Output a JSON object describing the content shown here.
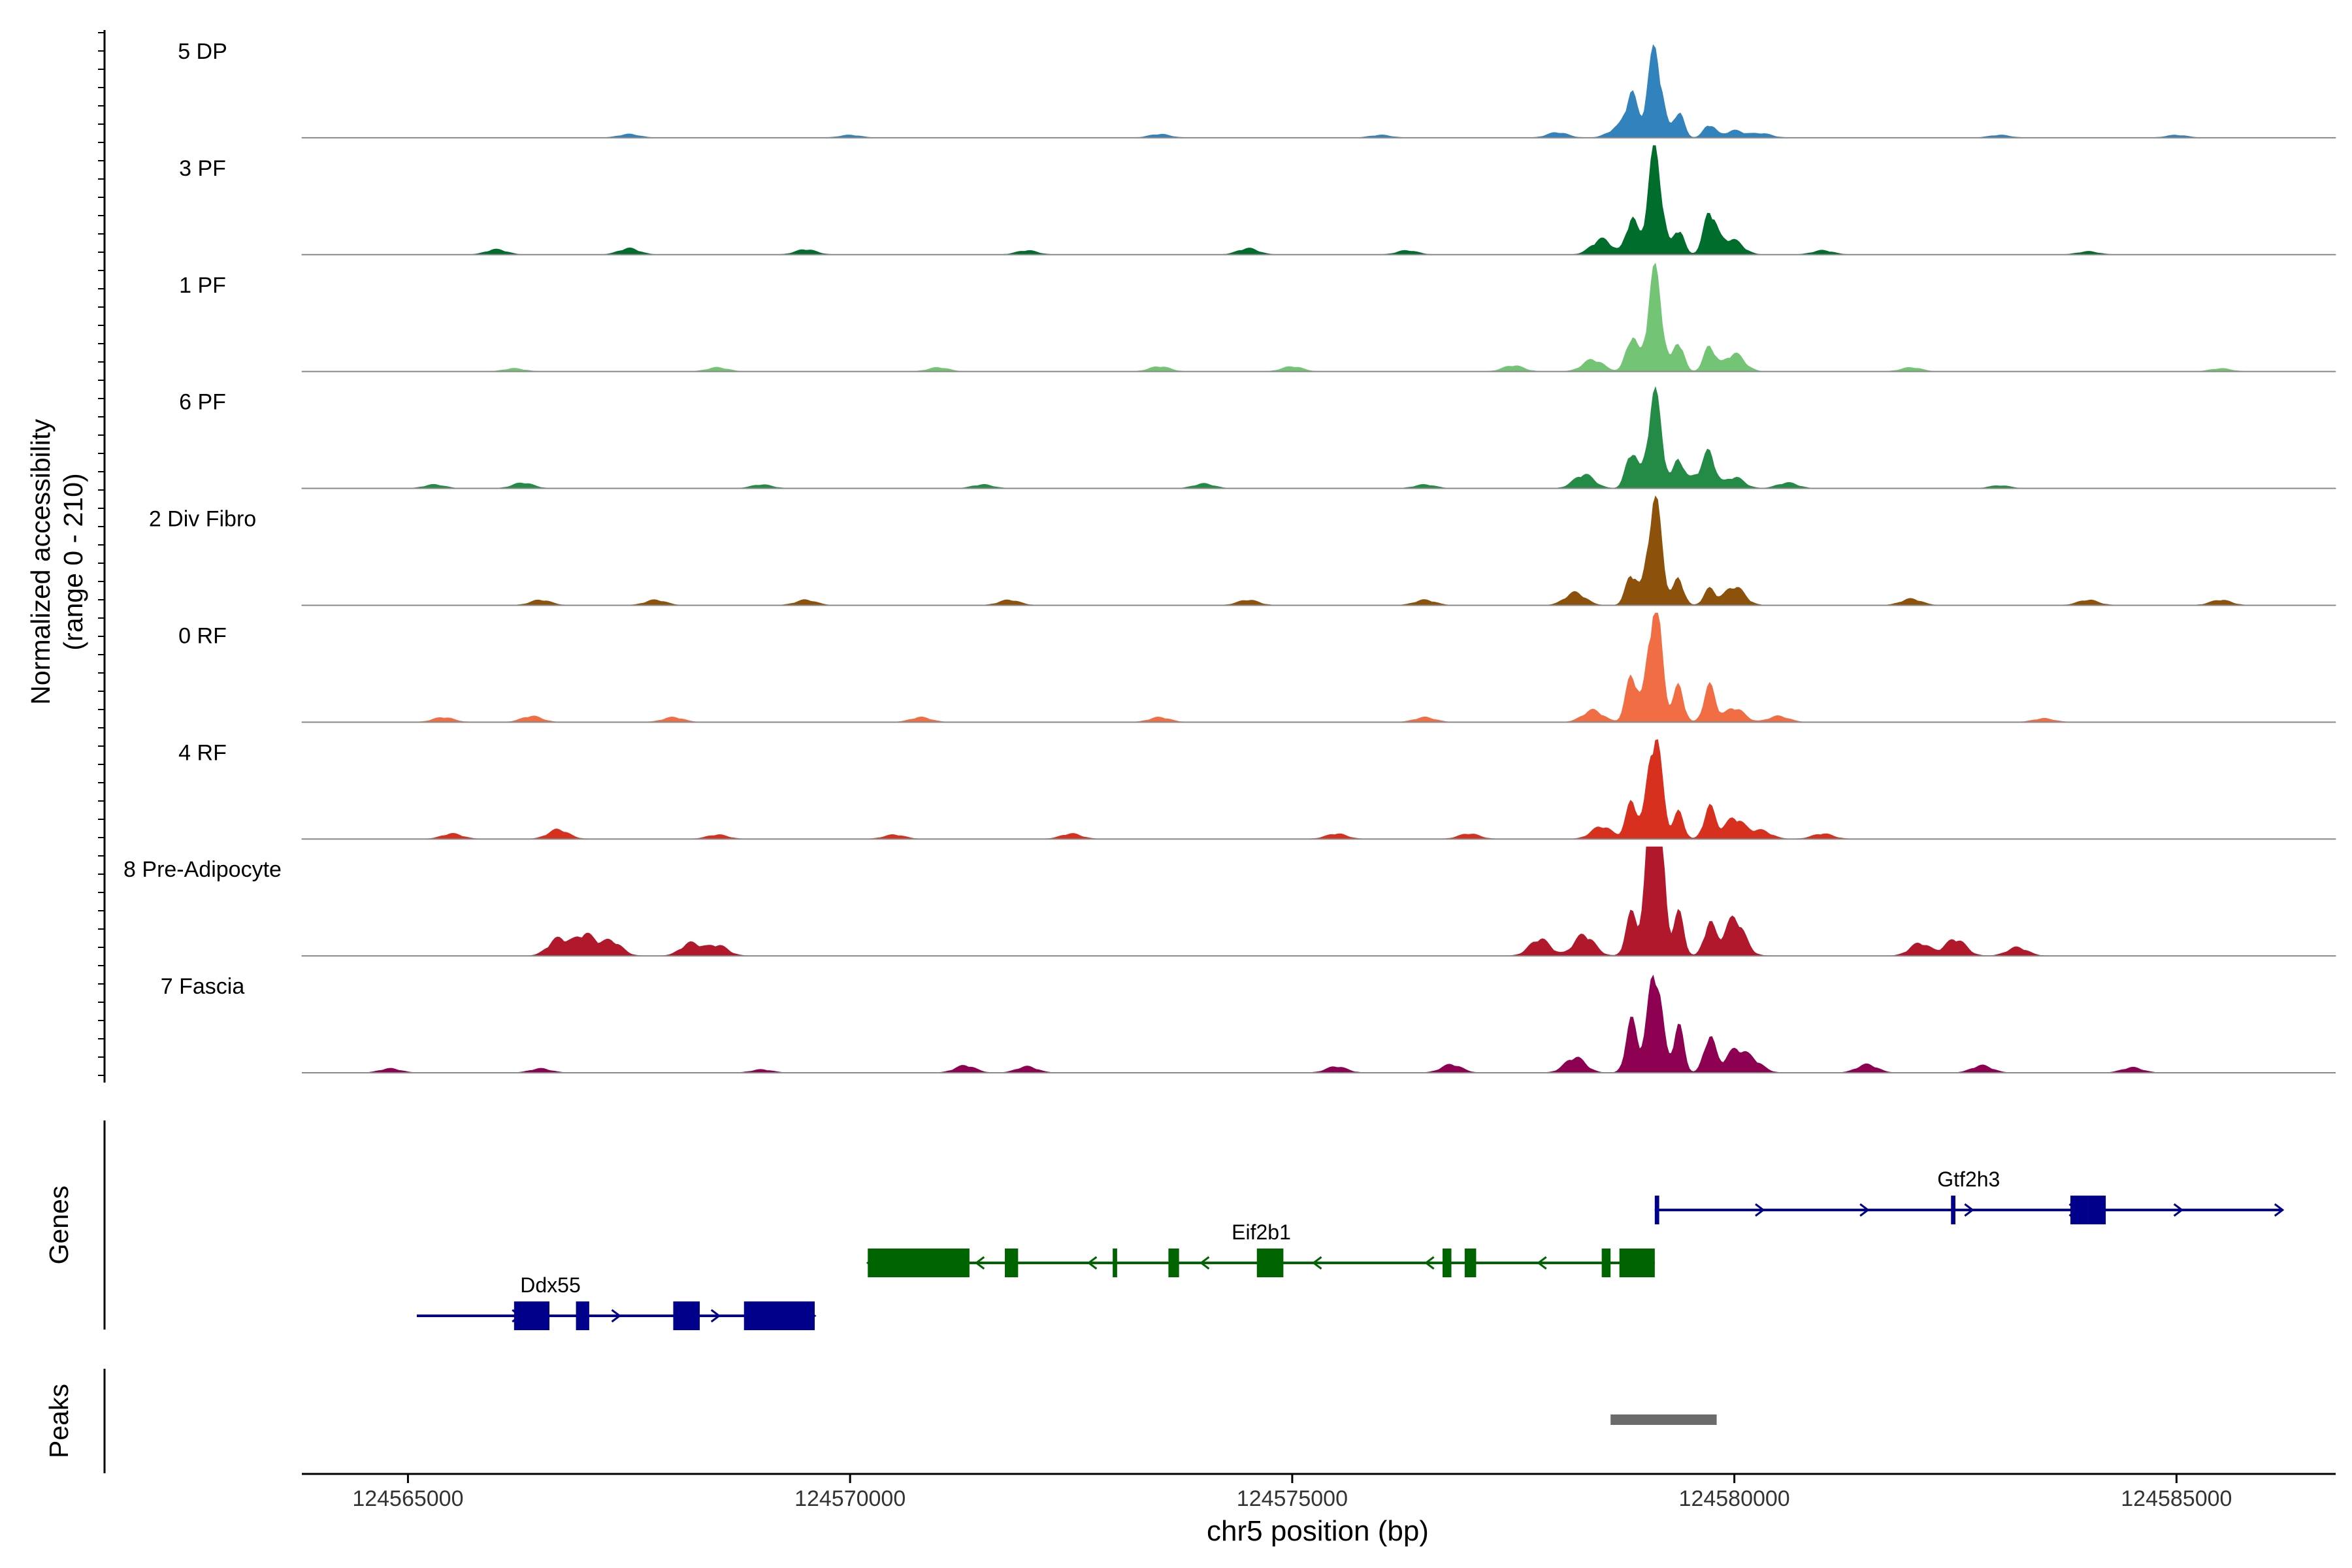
{
  "chart_data": {
    "type": "coverage-track",
    "ylabel_line1": "Normalized accessibility",
    "ylabel_line2": "(range 0 - 210)",
    "y_range": [
      0,
      210
    ],
    "xlabel": "chr5 position (bp)",
    "x_range": [
      124563800,
      124586800
    ],
    "x_ticks": [
      "124565000",
      "124570000",
      "124575000",
      "124580000",
      "124585000"
    ],
    "peak_pos": 124579100,
    "tracks": [
      {
        "name": "5 DP",
        "color": "#3182bd",
        "peak": 85,
        "sec": [
          0.45,
          0.3,
          0.15,
          0.08
        ],
        "bumps": [
          [
            124567500,
            0.04
          ],
          [
            124570000,
            0.03
          ],
          [
            124573500,
            0.04
          ],
          [
            124576000,
            0.03
          ],
          [
            124578000,
            0.06
          ],
          [
            124578700,
            0.12
          ],
          [
            124580300,
            0.05
          ],
          [
            124583000,
            0.03
          ],
          [
            124585000,
            0.03
          ]
        ]
      },
      {
        "name": "3 PF",
        "color": "#006d2c",
        "peak": 100,
        "sec": [
          0.35,
          0.25,
          0.35,
          0.12
        ],
        "bumps": [
          [
            124566000,
            0.05
          ],
          [
            124567500,
            0.06
          ],
          [
            124569500,
            0.05
          ],
          [
            124572000,
            0.04
          ],
          [
            124574500,
            0.06
          ],
          [
            124576300,
            0.04
          ],
          [
            124578500,
            0.15
          ],
          [
            124579800,
            0.1
          ],
          [
            124581000,
            0.04
          ],
          [
            124584000,
            0.03
          ]
        ]
      },
      {
        "name": "1 PF",
        "color": "#74c476",
        "peak": 96,
        "sec": [
          0.35,
          0.3,
          0.25,
          0.1
        ],
        "bumps": [
          [
            124566200,
            0.03
          ],
          [
            124568500,
            0.04
          ],
          [
            124571000,
            0.04
          ],
          [
            124573500,
            0.05
          ],
          [
            124575000,
            0.05
          ],
          [
            124577500,
            0.06
          ],
          [
            124578400,
            0.12
          ],
          [
            124580000,
            0.08
          ],
          [
            124582000,
            0.04
          ],
          [
            124585500,
            0.03
          ]
        ]
      },
      {
        "name": "6 PF",
        "color": "#238b45",
        "peak": 90,
        "sec": [
          0.4,
          0.3,
          0.3,
          0.12
        ],
        "bumps": [
          [
            124565300,
            0.04
          ],
          [
            124566300,
            0.06
          ],
          [
            124569000,
            0.04
          ],
          [
            124571500,
            0.04
          ],
          [
            124574000,
            0.05
          ],
          [
            124576500,
            0.04
          ],
          [
            124578300,
            0.15
          ],
          [
            124579600,
            0.15
          ],
          [
            124580600,
            0.06
          ],
          [
            124583000,
            0.03
          ]
        ]
      },
      {
        "name": "2 Div Fibro",
        "color": "#8c510a",
        "peak": 102,
        "sec": [
          0.3,
          0.25,
          0.15,
          0.1
        ],
        "bumps": [
          [
            124566500,
            0.05
          ],
          [
            124567800,
            0.05
          ],
          [
            124569500,
            0.05
          ],
          [
            124571800,
            0.05
          ],
          [
            124574500,
            0.05
          ],
          [
            124576500,
            0.05
          ],
          [
            124578200,
            0.12
          ],
          [
            124580000,
            0.08
          ],
          [
            124582000,
            0.06
          ],
          [
            124584000,
            0.05
          ],
          [
            124585500,
            0.05
          ]
        ]
      },
      {
        "name": "0 RF",
        "color": "#f16d43",
        "peak": 115,
        "sec": [
          0.4,
          0.3,
          0.3,
          0.12
        ],
        "bumps": [
          [
            124565400,
            0.04
          ],
          [
            124566400,
            0.05
          ],
          [
            124568000,
            0.04
          ],
          [
            124570800,
            0.04
          ],
          [
            124573500,
            0.04
          ],
          [
            124576500,
            0.04
          ],
          [
            124578400,
            0.1
          ],
          [
            124580500,
            0.05
          ],
          [
            124583500,
            0.03
          ]
        ]
      },
      {
        "name": "4 RF",
        "color": "#d7301f",
        "peak": 102,
        "sec": [
          0.35,
          0.25,
          0.3,
          0.2
        ],
        "bumps": [
          [
            124565500,
            0.05
          ],
          [
            124566700,
            0.09
          ],
          [
            124568500,
            0.04
          ],
          [
            124570500,
            0.04
          ],
          [
            124572500,
            0.05
          ],
          [
            124575500,
            0.05
          ],
          [
            124577000,
            0.05
          ],
          [
            124578500,
            0.12
          ],
          [
            124580300,
            0.08
          ],
          [
            124581000,
            0.05
          ]
        ]
      },
      {
        "name": "8 Pre-Adipocyte",
        "color": "#b2182b",
        "peak": 205,
        "sec": [
          0.2,
          0.2,
          0.15,
          0.1
        ],
        "bumps": [
          [
            124566700,
            0.08
          ],
          [
            124567000,
            0.1
          ],
          [
            124567300,
            0.07
          ],
          [
            124568200,
            0.06
          ],
          [
            124568500,
            0.05
          ],
          [
            124577800,
            0.08
          ],
          [
            124578300,
            0.1
          ],
          [
            124580000,
            0.08
          ],
          [
            124582100,
            0.06
          ],
          [
            124582500,
            0.08
          ],
          [
            124583200,
            0.04
          ]
        ]
      },
      {
        "name": "7 Fascia",
        "color": "#8e0152",
        "peak": 100,
        "sec": [
          0.5,
          0.45,
          0.35,
          0.2
        ],
        "bumps": [
          [
            124564800,
            0.04
          ],
          [
            124566500,
            0.04
          ],
          [
            124569000,
            0.03
          ],
          [
            124571300,
            0.07
          ],
          [
            124572000,
            0.06
          ],
          [
            124575500,
            0.06
          ],
          [
            124576800,
            0.08
          ],
          [
            124578200,
            0.15
          ],
          [
            124580200,
            0.12
          ],
          [
            124581500,
            0.08
          ],
          [
            124582800,
            0.07
          ],
          [
            124584500,
            0.05
          ]
        ]
      }
    ],
    "genes_label": "Genes",
    "peaks_label": "Peaks",
    "genes": [
      {
        "name": "Ddx55",
        "strand": "+",
        "color": "#00008b",
        "start": 124565100,
        "end": 124569600,
        "row": 2,
        "exons": [
          [
            124566200,
            124566600
          ],
          [
            124566900,
            124567050
          ],
          [
            124568000,
            124568300
          ],
          [
            124568800,
            124569600
          ]
        ]
      },
      {
        "name": "Eif2b1",
        "strand": "-",
        "color": "#006400",
        "start": 124570200,
        "end": 124579100,
        "row": 1,
        "exons": [
          [
            124570200,
            124571350
          ],
          [
            124571750,
            124571900
          ],
          [
            124572970,
            124573020
          ],
          [
            124573600,
            124573720
          ],
          [
            124574600,
            124574900
          ],
          [
            124576700,
            124576800
          ],
          [
            124576950,
            124577080
          ],
          [
            124578500,
            124578600
          ],
          [
            124578700,
            124579100
          ]
        ]
      },
      {
        "name": "Gtf2h3",
        "strand": "+",
        "color": "#00008b",
        "start": 124579100,
        "end": 124586200,
        "row": 0,
        "exons": [
          [
            124579100,
            124579150
          ],
          [
            124582450,
            124582500
          ],
          [
            124583800,
            124584000
          ],
          [
            124584000,
            124584200
          ]
        ]
      }
    ],
    "peaks": [
      [
        124578600,
        124579800
      ]
    ]
  }
}
